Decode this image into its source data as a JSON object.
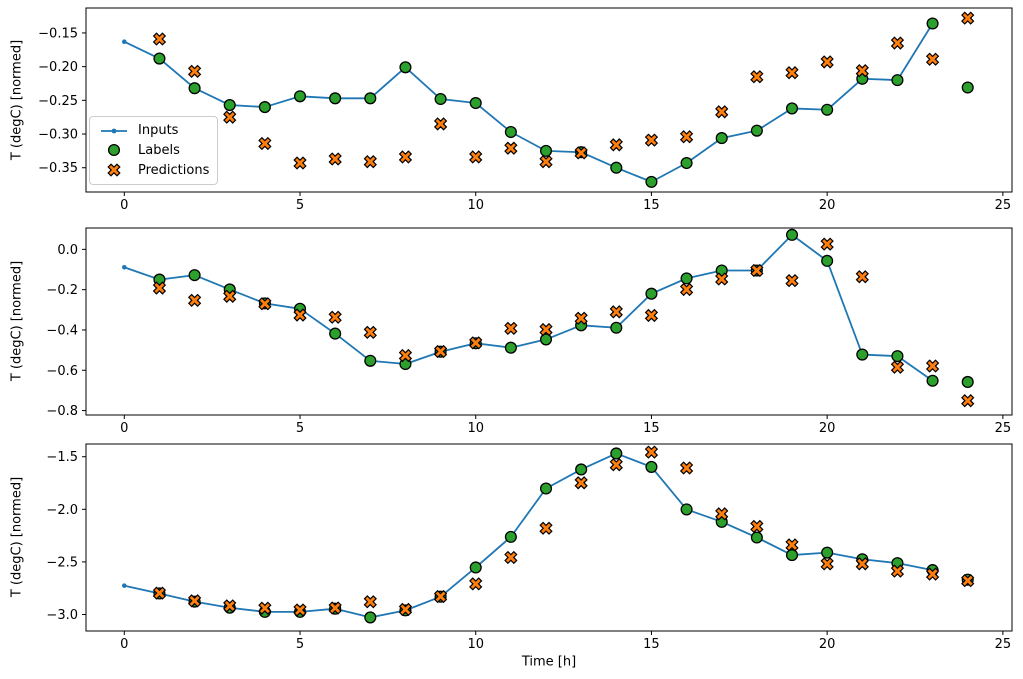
{
  "figure": {
    "xlabel": "Time [h]",
    "ylabel": "T (degC) [normed]",
    "background": "#ffffff",
    "legend": {
      "position": "center-left-of-top-subplot",
      "items": [
        {
          "label": "Inputs",
          "type": "line-with-dot",
          "color": "#1f77b4"
        },
        {
          "label": "Labels",
          "type": "circle",
          "fill": "#2ca02c",
          "edge": "#000000"
        },
        {
          "label": "Predictions",
          "type": "x-marker",
          "fill": "#ff7f0e",
          "edge": "#000000"
        }
      ]
    }
  },
  "chart_data": [
    {
      "type": "line+scatter",
      "title": "",
      "xlabel": "",
      "ylabel": "T (degC) [normed]",
      "grid": false,
      "xlim": [
        -1.09,
        25.26
      ],
      "ylim": [
        -0.386,
        -0.113
      ],
      "xticks": [
        0,
        5,
        10,
        15,
        20,
        25
      ],
      "xtick_labels": [
        "0",
        "5",
        "10",
        "15",
        "20",
        "25"
      ],
      "yticks": [
        -0.15,
        -0.2,
        -0.25,
        -0.3,
        -0.35
      ],
      "ytick_labels": [
        "−0.15",
        "−0.20",
        "−0.25",
        "−0.30",
        "−0.35"
      ],
      "series": [
        {
          "name": "Inputs",
          "type": "line",
          "color": "#1f77b4",
          "x": [
            0,
            1,
            2,
            3,
            4,
            5,
            6,
            7,
            8,
            9,
            10,
            11,
            12,
            13,
            14,
            15,
            16,
            17,
            18,
            19,
            20,
            21,
            22,
            23
          ],
          "y": [
            -0.163,
            -0.188,
            -0.232,
            -0.257,
            -0.26,
            -0.244,
            -0.247,
            -0.247,
            -0.201,
            -0.248,
            -0.254,
            -0.297,
            -0.325,
            -0.327,
            -0.35,
            -0.371,
            -0.343,
            -0.306,
            -0.295,
            -0.262,
            -0.264,
            -0.218,
            -0.22,
            -0.136
          ]
        },
        {
          "name": "Labels",
          "type": "scatter-circle",
          "fill": "#2ca02c",
          "edge": "#000000",
          "x": [
            1,
            2,
            3,
            4,
            5,
            6,
            7,
            8,
            9,
            10,
            11,
            12,
            13,
            14,
            15,
            16,
            17,
            18,
            19,
            20,
            21,
            22,
            23,
            24
          ],
          "y": [
            -0.188,
            -0.232,
            -0.257,
            -0.26,
            -0.244,
            -0.247,
            -0.247,
            -0.201,
            -0.248,
            -0.254,
            -0.297,
            -0.325,
            -0.327,
            -0.35,
            -0.371,
            -0.343,
            -0.306,
            -0.295,
            -0.262,
            -0.264,
            -0.218,
            -0.22,
            -0.136,
            -0.231
          ]
        },
        {
          "name": "Predictions",
          "type": "scatter-x",
          "fill": "#ff7f0e",
          "edge": "#000000",
          "x": [
            1,
            2,
            3,
            4,
            5,
            6,
            7,
            8,
            9,
            10,
            11,
            12,
            13,
            14,
            15,
            16,
            17,
            18,
            19,
            20,
            21,
            22,
            23,
            24
          ],
          "y": [
            -0.159,
            -0.207,
            -0.275,
            -0.314,
            -0.343,
            -0.337,
            -0.341,
            -0.334,
            -0.285,
            -0.334,
            -0.321,
            -0.341,
            -0.328,
            -0.316,
            -0.309,
            -0.304,
            -0.267,
            -0.215,
            -0.209,
            -0.193,
            -0.206,
            -0.165,
            -0.189,
            -0.128
          ]
        }
      ]
    },
    {
      "type": "line+scatter",
      "title": "",
      "xlabel": "",
      "ylabel": "T (degC) [normed]",
      "grid": false,
      "xlim": [
        -1.09,
        25.26
      ],
      "ylim": [
        -0.822,
        0.106
      ],
      "xticks": [
        0,
        5,
        10,
        15,
        20,
        25
      ],
      "xtick_labels": [
        "0",
        "5",
        "10",
        "15",
        "20",
        "25"
      ],
      "yticks": [
        0.0,
        -0.2,
        -0.4,
        -0.6,
        -0.8
      ],
      "ytick_labels": [
        "0.0",
        "−0.2",
        "−0.4",
        "−0.6",
        "−0.8"
      ],
      "series": [
        {
          "name": "Inputs",
          "type": "line",
          "color": "#1f77b4",
          "x": [
            0,
            1,
            2,
            3,
            4,
            5,
            6,
            7,
            8,
            9,
            10,
            11,
            12,
            13,
            14,
            15,
            16,
            17,
            18,
            19,
            20,
            21,
            22,
            23
          ],
          "y": [
            -0.089,
            -0.15,
            -0.128,
            -0.199,
            -0.268,
            -0.295,
            -0.418,
            -0.553,
            -0.569,
            -0.508,
            -0.466,
            -0.488,
            -0.447,
            -0.377,
            -0.389,
            -0.22,
            -0.144,
            -0.105,
            -0.105,
            0.072,
            -0.057,
            -0.522,
            -0.53,
            -0.652
          ]
        },
        {
          "name": "Labels",
          "type": "scatter-circle",
          "fill": "#2ca02c",
          "edge": "#000000",
          "x": [
            1,
            2,
            3,
            4,
            5,
            6,
            7,
            8,
            9,
            10,
            11,
            12,
            13,
            14,
            15,
            16,
            17,
            18,
            19,
            20,
            21,
            22,
            23,
            24
          ],
          "y": [
            -0.15,
            -0.128,
            -0.199,
            -0.268,
            -0.295,
            -0.418,
            -0.553,
            -0.569,
            -0.508,
            -0.466,
            -0.488,
            -0.447,
            -0.377,
            -0.389,
            -0.22,
            -0.144,
            -0.105,
            -0.105,
            0.072,
            -0.057,
            -0.522,
            -0.53,
            -0.652,
            -0.658
          ]
        },
        {
          "name": "Predictions",
          "type": "scatter-x",
          "fill": "#ff7f0e",
          "edge": "#000000",
          "x": [
            1,
            2,
            3,
            4,
            5,
            6,
            7,
            8,
            9,
            10,
            11,
            12,
            13,
            14,
            15,
            16,
            17,
            18,
            19,
            20,
            21,
            22,
            23,
            24
          ],
          "y": [
            -0.192,
            -0.253,
            -0.233,
            -0.27,
            -0.326,
            -0.337,
            -0.412,
            -0.527,
            -0.507,
            -0.464,
            -0.392,
            -0.398,
            -0.342,
            -0.31,
            -0.328,
            -0.199,
            -0.147,
            -0.105,
            -0.155,
            0.026,
            -0.136,
            -0.585,
            -0.579,
            -0.751
          ]
        }
      ]
    },
    {
      "type": "line+scatter",
      "title": "",
      "xlabel": "Time [h]",
      "ylabel": "T (degC) [normed]",
      "grid": false,
      "xlim": [
        -1.09,
        25.26
      ],
      "ylim": [
        -3.157,
        -1.379
      ],
      "xticks": [
        0,
        5,
        10,
        15,
        20,
        25
      ],
      "xtick_labels": [
        "0",
        "5",
        "10",
        "15",
        "20",
        "25"
      ],
      "yticks": [
        -1.5,
        -2.0,
        -2.5,
        -3.0
      ],
      "ytick_labels": [
        "−1.5",
        "−2.0",
        "−2.5",
        "−3.0"
      ],
      "series": [
        {
          "name": "Inputs",
          "type": "line",
          "color": "#1f77b4",
          "x": [
            0,
            1,
            2,
            3,
            4,
            5,
            6,
            7,
            8,
            9,
            10,
            11,
            12,
            13,
            14,
            15,
            16,
            17,
            18,
            19,
            20,
            21,
            22,
            23
          ],
          "y": [
            -2.726,
            -2.8,
            -2.878,
            -2.936,
            -2.975,
            -2.975,
            -2.945,
            -3.028,
            -2.961,
            -2.831,
            -2.553,
            -2.262,
            -1.802,
            -1.621,
            -1.469,
            -1.597,
            -2.001,
            -2.119,
            -2.268,
            -2.435,
            -2.412,
            -2.475,
            -2.512,
            -2.578
          ]
        },
        {
          "name": "Labels",
          "type": "scatter-circle",
          "fill": "#2ca02c",
          "edge": "#000000",
          "x": [
            1,
            2,
            3,
            4,
            5,
            6,
            7,
            8,
            9,
            10,
            11,
            12,
            13,
            14,
            15,
            16,
            17,
            18,
            19,
            20,
            21,
            22,
            23,
            24
          ],
          "y": [
            -2.8,
            -2.878,
            -2.936,
            -2.975,
            -2.975,
            -2.945,
            -3.028,
            -2.961,
            -2.831,
            -2.553,
            -2.262,
            -1.802,
            -1.621,
            -1.469,
            -1.597,
            -2.001,
            -2.119,
            -2.268,
            -2.435,
            -2.412,
            -2.475,
            -2.512,
            -2.578,
            -2.669
          ]
        },
        {
          "name": "Predictions",
          "type": "scatter-x",
          "fill": "#ff7f0e",
          "edge": "#000000",
          "x": [
            1,
            2,
            3,
            4,
            5,
            6,
            7,
            8,
            9,
            10,
            11,
            12,
            13,
            14,
            15,
            16,
            17,
            18,
            19,
            20,
            21,
            22,
            23,
            24
          ],
          "y": [
            -2.797,
            -2.87,
            -2.918,
            -2.94,
            -2.957,
            -2.938,
            -2.879,
            -2.952,
            -2.829,
            -2.709,
            -2.458,
            -2.18,
            -1.748,
            -1.576,
            -1.456,
            -1.607,
            -2.043,
            -2.163,
            -2.338,
            -2.519,
            -2.518,
            -2.588,
            -2.616,
            -2.678
          ]
        }
      ]
    }
  ]
}
